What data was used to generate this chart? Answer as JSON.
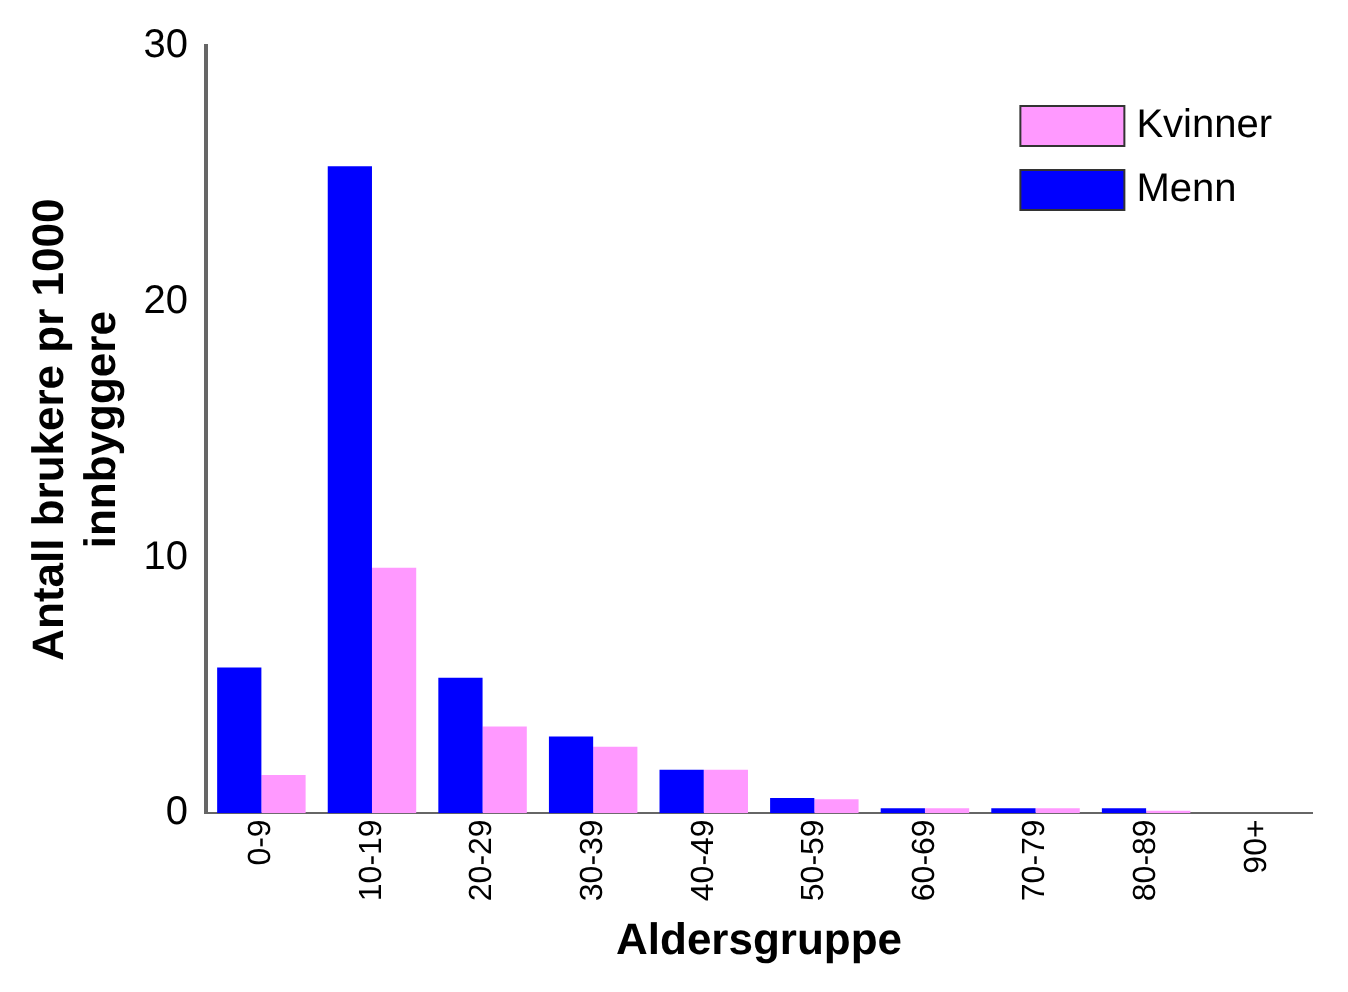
{
  "chart_data": {
    "type": "bar",
    "xlabel": "Aldersgruppe",
    "ylabel": "Antall brukere pr 1000 innbyggere",
    "categories": [
      "0-9",
      "10-19",
      "20-29",
      "30-39",
      "40-49",
      "50-59",
      "60-69",
      "70-79",
      "80-89",
      "90+"
    ],
    "series": [
      {
        "name": "Menn",
        "color": "#0000ff",
        "values": [
          5.7,
          25.3,
          5.3,
          3.0,
          1.7,
          0.6,
          0.2,
          0.2,
          0.2,
          0
        ]
      },
      {
        "name": "Kvinner",
        "color": "#ff99ff",
        "values": [
          1.5,
          9.6,
          3.4,
          2.6,
          1.7,
          0.55,
          0.2,
          0.2,
          0.1,
          0
        ]
      }
    ],
    "ylim": [
      0,
      30
    ],
    "yticks": [
      0,
      10,
      20,
      30
    ],
    "grid": false,
    "legend": "top right"
  }
}
